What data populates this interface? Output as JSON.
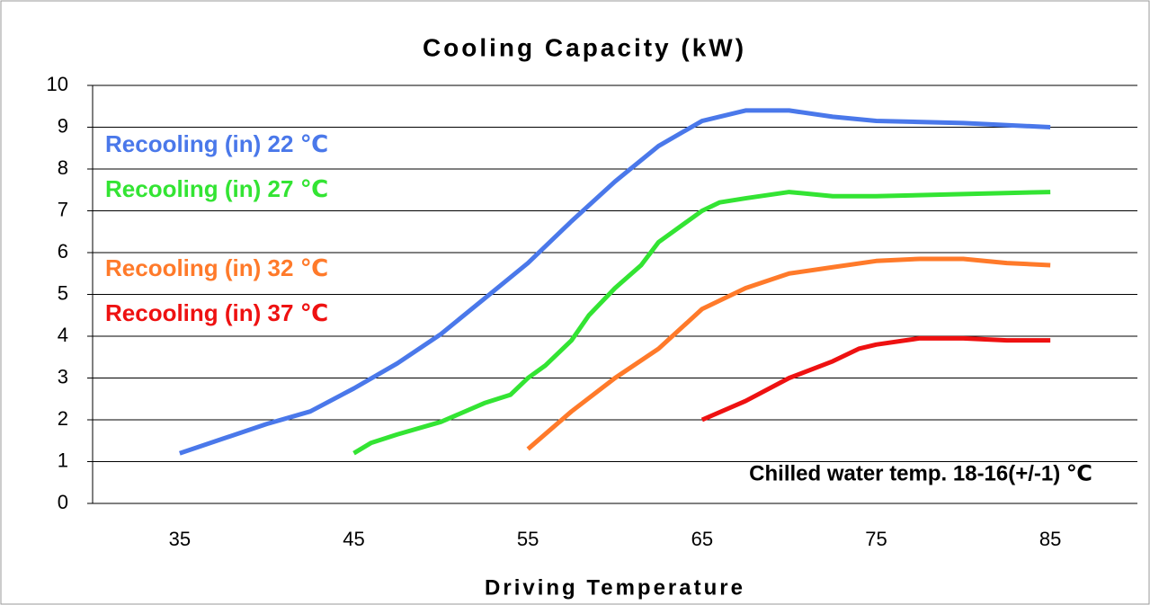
{
  "chart_data": {
    "type": "line",
    "title": "Cooling Capacity (kW)",
    "x_label": "Driving Temperature",
    "annotation": "Chilled water temp. 18-16(+/-1) ℃",
    "xlim": [
      30,
      90
    ],
    "xticks": [
      35,
      45,
      55,
      65,
      75,
      85
    ],
    "ylim": [
      0,
      10
    ],
    "yticks": [
      0,
      1,
      2,
      3,
      4,
      5,
      6,
      7,
      8,
      9,
      10
    ],
    "grid": true,
    "series": [
      {
        "name": "Recooling (in) 22 ℃",
        "color": "#4a78ea",
        "x": [
          35,
          37.5,
          40,
          42.5,
          45,
          47.5,
          50,
          52.5,
          55,
          57.5,
          60,
          62.5,
          65,
          66.5,
          67.5,
          70,
          72.5,
          75,
          80,
          85
        ],
        "values": [
          1.2,
          1.55,
          1.9,
          2.2,
          2.75,
          3.35,
          4.05,
          4.9,
          5.75,
          6.75,
          7.7,
          8.55,
          9.15,
          9.3,
          9.4,
          9.4,
          9.25,
          9.15,
          9.1,
          9.0
        ]
      },
      {
        "name": "Recooling (in) 27 ℃",
        "color": "#33e433",
        "x": [
          45,
          46,
          47.5,
          50,
          52.5,
          54,
          55,
          56,
          57.5,
          58.5,
          60,
          61.5,
          62.5,
          64,
          65,
          66,
          67.5,
          70,
          72.5,
          75,
          80,
          85
        ],
        "values": [
          1.2,
          1.45,
          1.65,
          1.95,
          2.4,
          2.6,
          3.0,
          3.3,
          3.9,
          4.5,
          5.15,
          5.7,
          6.25,
          6.7,
          7.0,
          7.2,
          7.3,
          7.45,
          7.35,
          7.35,
          7.4,
          7.45
        ]
      },
      {
        "name": "Recooling (in) 32 ℃",
        "color": "#ff7a2a",
        "x": [
          55,
          57.5,
          60,
          62.5,
          65,
          67.5,
          70,
          72.5,
          75,
          77.5,
          80,
          82.5,
          85
        ],
        "values": [
          1.3,
          2.2,
          3.0,
          3.7,
          4.65,
          5.15,
          5.5,
          5.65,
          5.8,
          5.85,
          5.85,
          5.75,
          5.7
        ]
      },
      {
        "name": "Recooling (in) 37 ℃",
        "color": "#ee1111",
        "x": [
          65,
          67.5,
          70,
          72.5,
          74,
          75,
          77.5,
          80,
          82.5,
          85
        ],
        "values": [
          2.0,
          2.45,
          3.0,
          3.4,
          3.7,
          3.8,
          3.95,
          3.95,
          3.9,
          3.9
        ]
      }
    ]
  }
}
